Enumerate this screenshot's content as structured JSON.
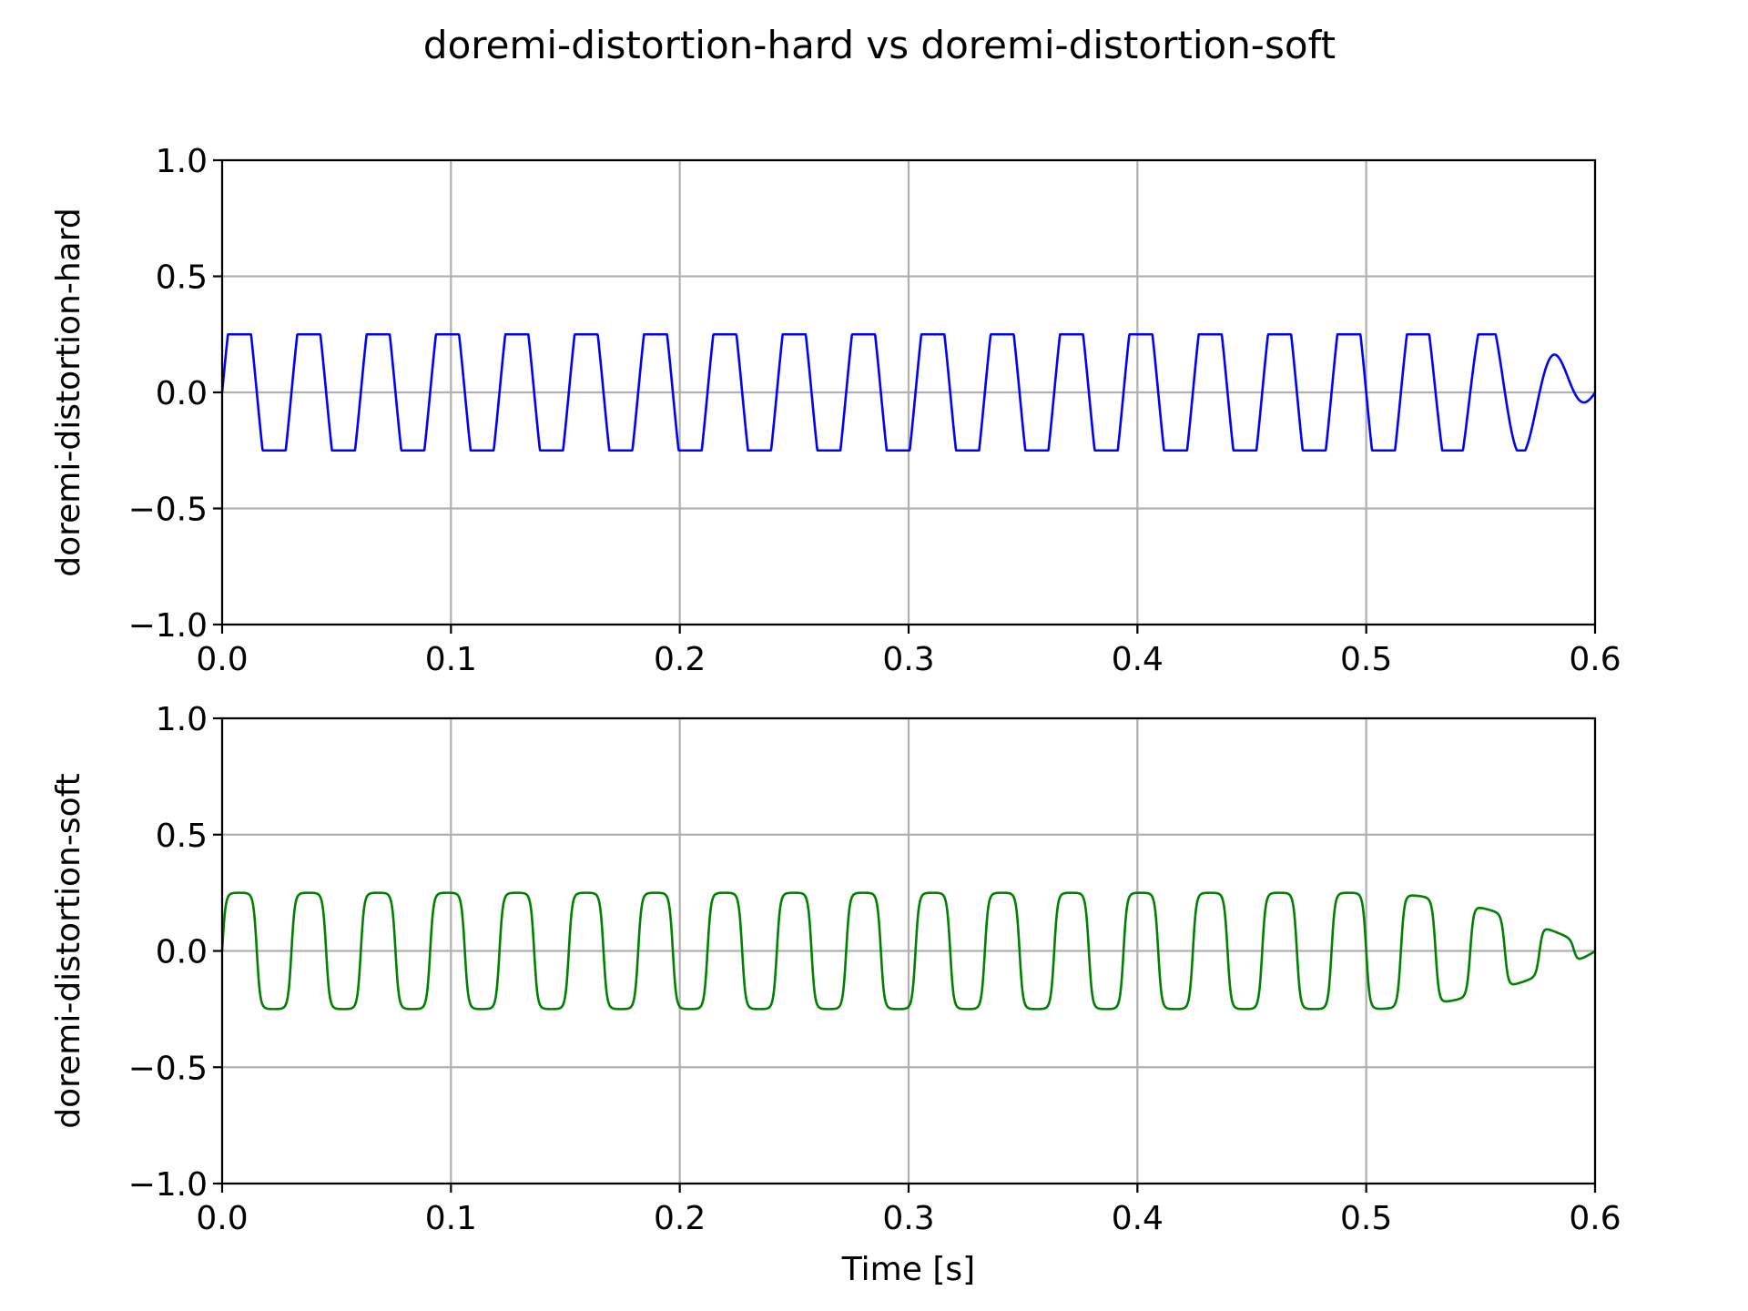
{
  "figure": {
    "title": "doremi-distortion-hard vs doremi-distortion-soft"
  },
  "chart_data": [
    {
      "type": "line",
      "name": "top-subplot",
      "xlabel": "",
      "ylabel": "doremi-distortion-hard",
      "xlim": [
        0.0,
        0.6
      ],
      "ylim": [
        -1.0,
        1.0
      ],
      "xticks": [
        "0.0",
        "0.1",
        "0.2",
        "0.3",
        "0.4",
        "0.5",
        "0.6"
      ],
      "yticks": [
        "1.0",
        "0.5",
        "0.0",
        "−0.5",
        "−1.0"
      ],
      "grid": true,
      "signal": {
        "kind": "clipped-sine",
        "clip": "hard",
        "frequency_hz": 33,
        "amplitude": 0.5,
        "clip_level": 0.25,
        "sustain_until_s": 0.5,
        "decay_until_s": 0.6,
        "peaks_during_decay": [
          0.23,
          0.13,
          0.04
        ],
        "troughs_during_decay": [
          -0.18,
          -0.08,
          0.0
        ]
      },
      "color": "#0000ff"
    },
    {
      "type": "line",
      "name": "bottom-subplot",
      "xlabel": "Time [s]",
      "ylabel": "doremi-distortion-soft",
      "xlim": [
        0.0,
        0.6
      ],
      "ylim": [
        -1.0,
        1.0
      ],
      "xticks": [
        "0.0",
        "0.1",
        "0.2",
        "0.3",
        "0.4",
        "0.5",
        "0.6"
      ],
      "yticks": [
        "1.0",
        "0.5",
        "0.0",
        "−0.5",
        "−1.0"
      ],
      "grid": true,
      "signal": {
        "kind": "clipped-sine",
        "clip": "soft",
        "frequency_hz": 33,
        "amplitude": 0.5,
        "clip_level": 0.25,
        "sustain_until_s": 0.5,
        "decay_until_s": 0.6,
        "peaks_during_decay": [
          0.25,
          0.18,
          0.06
        ],
        "troughs_during_decay": [
          -0.22,
          -0.12,
          0.0
        ]
      },
      "color": "#008000"
    }
  ]
}
